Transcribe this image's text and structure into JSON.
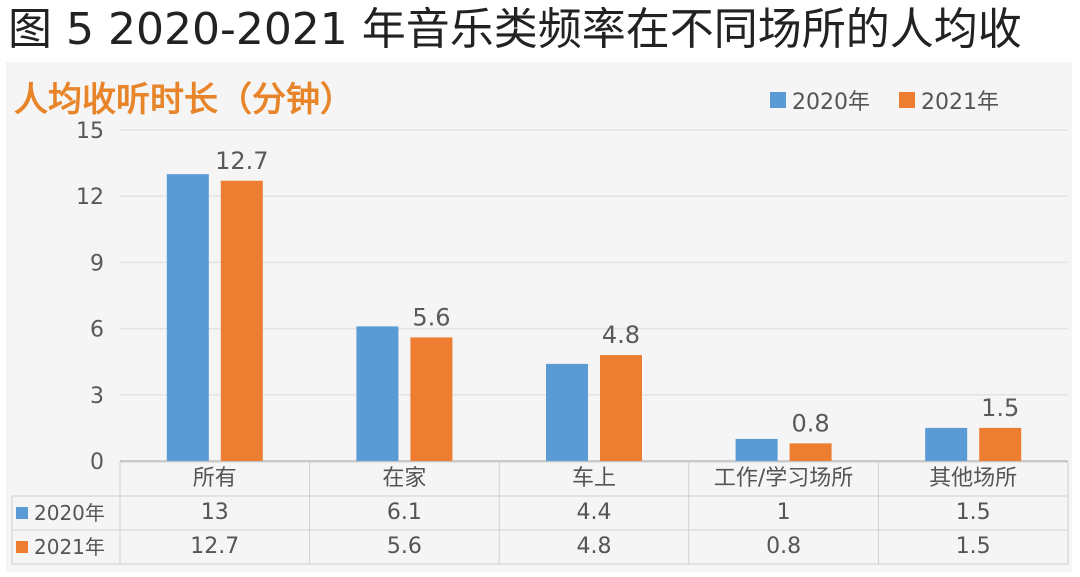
{
  "title": "图 5 2020-2021 年音乐类频率在不同场所的人均收",
  "chart_data": {
    "type": "bar",
    "title": "人均收听时长（分钟）",
    "categories": [
      "所有",
      "在家",
      "车上",
      "工作/学习场所",
      "其他场所"
    ],
    "series": [
      {
        "name": "2020年",
        "values": [
          13,
          6.1,
          4.4,
          1,
          1.5
        ],
        "color": "#5b9bd5"
      },
      {
        "name": "2021年",
        "values": [
          12.7,
          5.6,
          4.8,
          0.8,
          1.5
        ],
        "color": "#ed7d31"
      }
    ],
    "data_labels": {
      "2021年": [
        "12.7",
        "5.6",
        "4.8",
        "0.8",
        "1.5"
      ]
    },
    "table": {
      "rows": [
        {
          "name": "2020年",
          "values": [
            "13",
            "6.1",
            "4.4",
            "1",
            "1.5"
          ]
        },
        {
          "name": "2021年",
          "values": [
            "12.7",
            "5.6",
            "4.8",
            "0.8",
            "1.5"
          ]
        }
      ]
    },
    "ylim": [
      0,
      15
    ],
    "yticks": [
      0,
      3,
      6,
      9,
      12,
      15
    ],
    "grid": true,
    "legend_position": "top-right",
    "xlabel": "",
    "ylabel": ""
  }
}
